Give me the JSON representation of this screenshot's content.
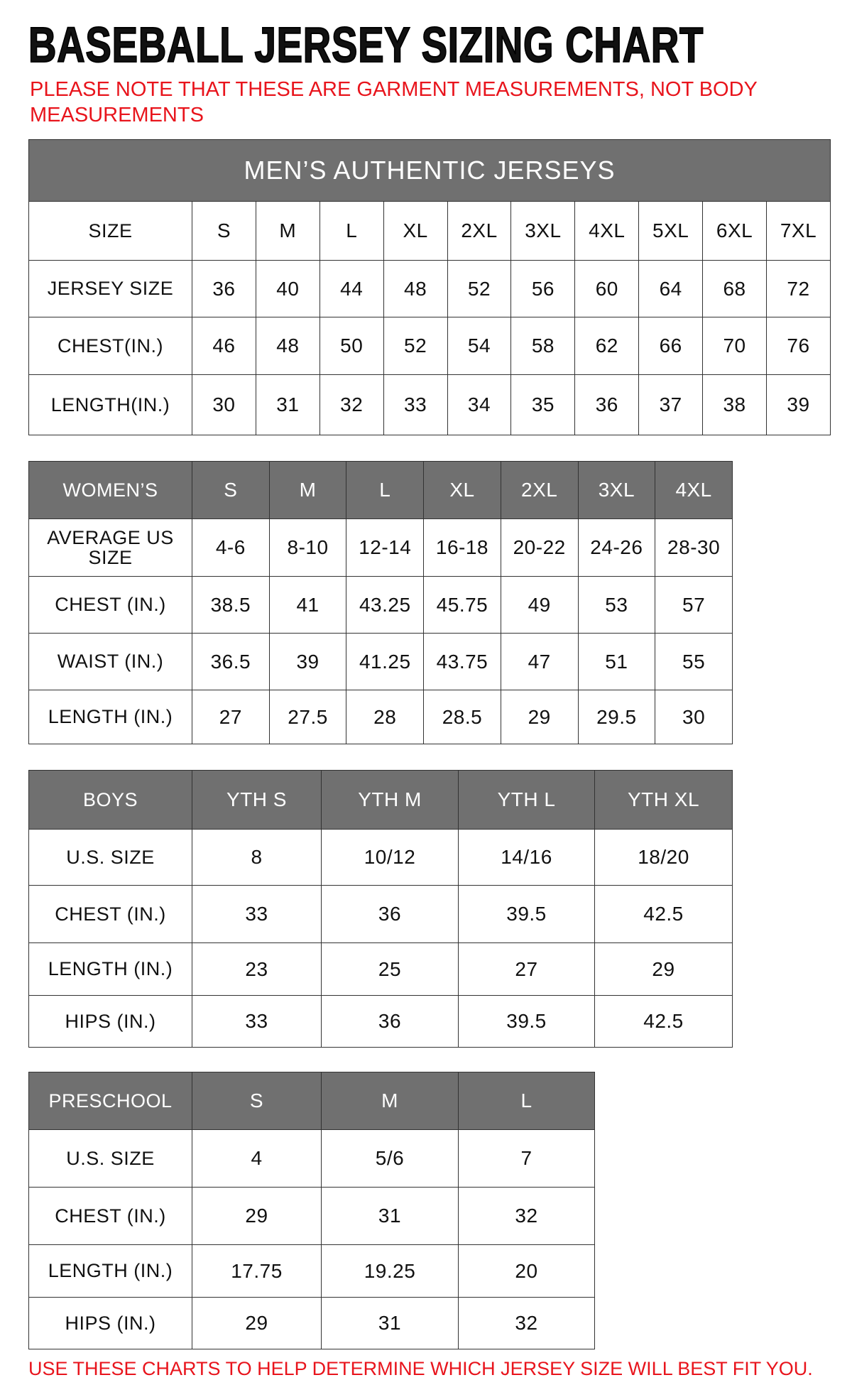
{
  "title": "BASEBALL JERSEY SIZING CHART",
  "note": "PLEASE NOTE THAT THESE ARE GARMENT MEASUREMENTS, NOT BODY MEASUREMENTS",
  "footer": "USE THESE CHARTS TO HELP DETERMINE WHICH JERSEY SIZE WILL BEST FIT YOU.",
  "colors": {
    "header_bg": "#707070",
    "note_red": "#e8141c"
  },
  "mens": {
    "title": "MEN’S AUTHENTIC JERSEYS",
    "header": [
      "SIZE",
      "S",
      "M",
      "L",
      "XL",
      "2XL",
      "3XL",
      "4XL",
      "5XL",
      "6XL",
      "7XL"
    ],
    "rows": [
      [
        "JERSEY SIZE",
        "36",
        "40",
        "44",
        "48",
        "52",
        "56",
        "60",
        "64",
        "68",
        "72"
      ],
      [
        "CHEST(IN.)",
        "46",
        "48",
        "50",
        "52",
        "54",
        "58",
        "62",
        "66",
        "70",
        "76"
      ],
      [
        "LENGTH(IN.)",
        "30",
        "31",
        "32",
        "33",
        "34",
        "35",
        "36",
        "37",
        "38",
        "39"
      ]
    ]
  },
  "womens": {
    "header": [
      "WOMEN’S",
      "S",
      "M",
      "L",
      "XL",
      "2XL",
      "3XL",
      "4XL"
    ],
    "rows": [
      [
        "AVERAGE US SIZE",
        "4-6",
        "8-10",
        "12-14",
        "16-18",
        "20-22",
        "24-26",
        "28-30"
      ],
      [
        "CHEST (IN.)",
        "38.5",
        "41",
        "43.25",
        "45.75",
        "49",
        "53",
        "57"
      ],
      [
        "WAIST (IN.)",
        "36.5",
        "39",
        "41.25",
        "43.75",
        "47",
        "51",
        "55"
      ],
      [
        "LENGTH (IN.)",
        "27",
        "27.5",
        "28",
        "28.5",
        "29",
        "29.5",
        "30"
      ]
    ]
  },
  "boys": {
    "header": [
      "BOYS",
      "YTH S",
      "YTH M",
      "YTH L",
      "YTH XL"
    ],
    "rows": [
      [
        "U.S. SIZE",
        "8",
        "10/12",
        "14/16",
        "18/20"
      ],
      [
        "CHEST (IN.)",
        "33",
        "36",
        "39.5",
        "42.5"
      ],
      [
        "LENGTH (IN.)",
        "23",
        "25",
        "27",
        "29"
      ],
      [
        "HIPS (IN.)",
        "33",
        "36",
        "39.5",
        "42.5"
      ]
    ]
  },
  "preschool": {
    "header": [
      "PRESCHOOL",
      "S",
      "M",
      "L"
    ],
    "rows": [
      [
        "U.S. SIZE",
        "4",
        "5/6",
        "7"
      ],
      [
        "CHEST (IN.)",
        "29",
        "31",
        "32"
      ],
      [
        "LENGTH (IN.)",
        "17.75",
        "19.25",
        "20"
      ],
      [
        "HIPS (IN.)",
        "29",
        "31",
        "32"
      ]
    ]
  }
}
